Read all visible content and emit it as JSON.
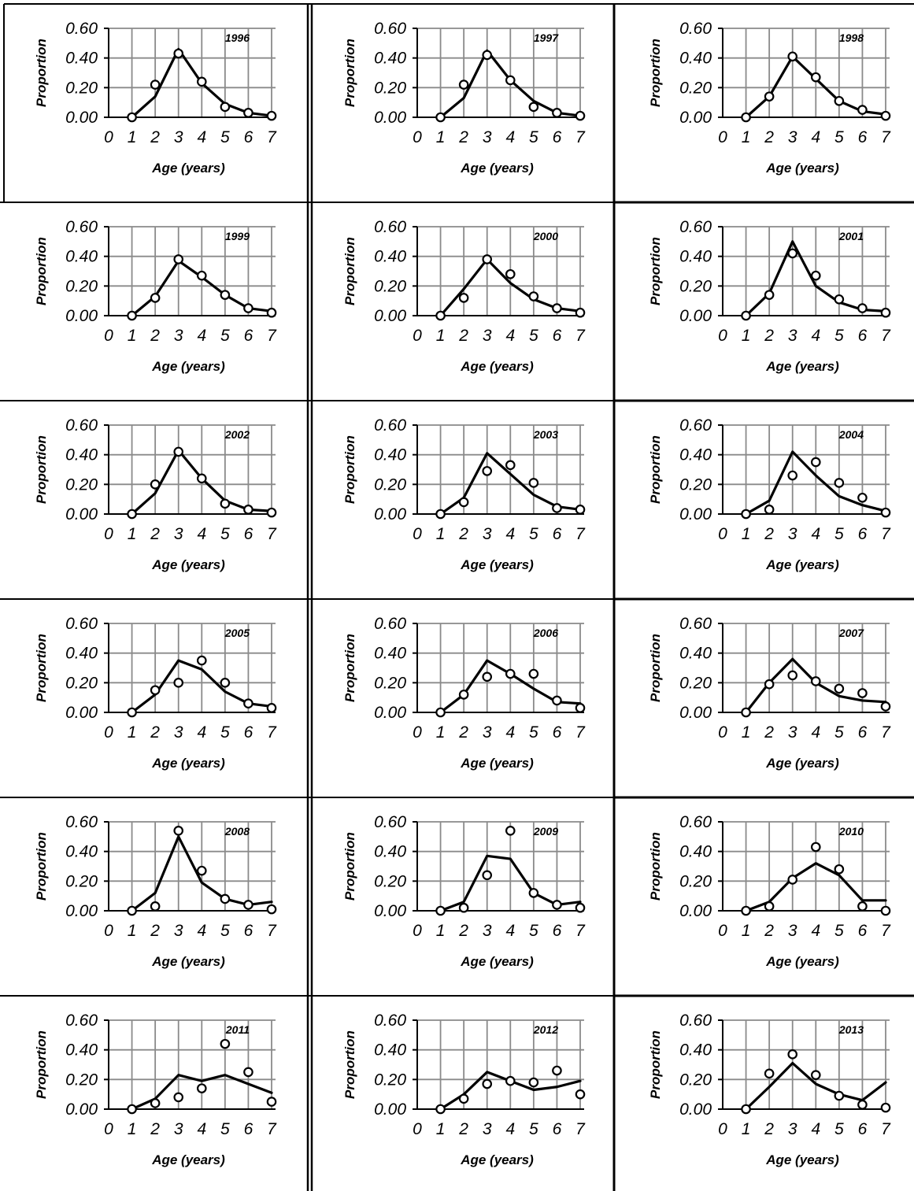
{
  "chart_data": [
    {
      "type": "line",
      "title": "1996",
      "xlabel": "Age (years)",
      "ylabel": "Proportion",
      "xlim": [
        0,
        7
      ],
      "ylim": [
        0,
        0.6
      ],
      "xticks": [
        "0",
        "1",
        "2",
        "3",
        "4",
        "5",
        "6",
        "7"
      ],
      "yticks": [
        "0.00",
        "0.20",
        "0.40",
        "0.60"
      ],
      "grid": true,
      "x": [
        1,
        2,
        3,
        4,
        5,
        6,
        7
      ],
      "series": [
        {
          "style": "line",
          "values": [
            0.0,
            0.14,
            0.46,
            0.23,
            0.09,
            0.03,
            0.01
          ]
        },
        {
          "style": "markers",
          "values": [
            0.0,
            0.22,
            0.43,
            0.24,
            0.07,
            0.03,
            0.01
          ]
        }
      ]
    },
    {
      "type": "line",
      "title": "1997",
      "xlabel": "Age (years)",
      "ylabel": "Proportion",
      "xlim": [
        0,
        7
      ],
      "ylim": [
        0,
        0.6
      ],
      "xticks": [
        "0",
        "1",
        "2",
        "3",
        "4",
        "5",
        "6",
        "7"
      ],
      "yticks": [
        "0.00",
        "0.20",
        "0.40",
        "0.60"
      ],
      "grid": true,
      "x": [
        1,
        2,
        3,
        4,
        5,
        6,
        7
      ],
      "series": [
        {
          "style": "line",
          "values": [
            0.0,
            0.13,
            0.45,
            0.25,
            0.11,
            0.03,
            0.01
          ]
        },
        {
          "style": "markers",
          "values": [
            0.0,
            0.22,
            0.42,
            0.25,
            0.07,
            0.03,
            0.01
          ]
        }
      ]
    },
    {
      "type": "line",
      "title": "1998",
      "xlabel": "Age (years)",
      "ylabel": "Proportion",
      "xlim": [
        0,
        7
      ],
      "ylim": [
        0,
        0.6
      ],
      "xticks": [
        "0",
        "1",
        "2",
        "3",
        "4",
        "5",
        "6",
        "7"
      ],
      "yticks": [
        "0.00",
        "0.20",
        "0.40",
        "0.60"
      ],
      "grid": true,
      "x": [
        1,
        2,
        3,
        4,
        5,
        6,
        7
      ],
      "series": [
        {
          "style": "line",
          "values": [
            0.0,
            0.14,
            0.41,
            0.26,
            0.11,
            0.04,
            0.02
          ]
        },
        {
          "style": "markers",
          "values": [
            0.0,
            0.14,
            0.41,
            0.27,
            0.11,
            0.05,
            0.01
          ]
        }
      ]
    },
    {
      "type": "line",
      "title": "1999",
      "xlabel": "Age (years)",
      "ylabel": "Proportion",
      "xlim": [
        0,
        7
      ],
      "ylim": [
        0,
        0.6
      ],
      "xticks": [
        "0",
        "1",
        "2",
        "3",
        "4",
        "5",
        "6",
        "7"
      ],
      "yticks": [
        "0.00",
        "0.20",
        "0.40",
        "0.60"
      ],
      "grid": true,
      "x": [
        1,
        2,
        3,
        4,
        5,
        6,
        7
      ],
      "series": [
        {
          "style": "line",
          "values": [
            0.0,
            0.13,
            0.37,
            0.26,
            0.14,
            0.05,
            0.03
          ]
        },
        {
          "style": "markers",
          "values": [
            0.0,
            0.12,
            0.38,
            0.27,
            0.14,
            0.05,
            0.02
          ]
        }
      ]
    },
    {
      "type": "line",
      "title": "2000",
      "xlabel": "Age (years)",
      "ylabel": "Proportion",
      "xlim": [
        0,
        7
      ],
      "ylim": [
        0,
        0.6
      ],
      "xticks": [
        "0",
        "1",
        "2",
        "3",
        "4",
        "5",
        "6",
        "7"
      ],
      "yticks": [
        "0.00",
        "0.20",
        "0.40",
        "0.60"
      ],
      "grid": true,
      "x": [
        1,
        2,
        3,
        4,
        5,
        6,
        7
      ],
      "series": [
        {
          "style": "line",
          "values": [
            0.0,
            0.18,
            0.38,
            0.22,
            0.11,
            0.05,
            0.03
          ]
        },
        {
          "style": "markers",
          "values": [
            0.0,
            0.12,
            0.38,
            0.28,
            0.13,
            0.05,
            0.02
          ]
        }
      ]
    },
    {
      "type": "line",
      "title": "2001",
      "xlabel": "Age (years)",
      "ylabel": "Proportion",
      "xlim": [
        0,
        7
      ],
      "ylim": [
        0,
        0.6
      ],
      "xticks": [
        "0",
        "1",
        "2",
        "3",
        "4",
        "5",
        "6",
        "7"
      ],
      "yticks": [
        "0.00",
        "0.20",
        "0.40",
        "0.60"
      ],
      "grid": true,
      "x": [
        1,
        2,
        3,
        4,
        5,
        6,
        7
      ],
      "series": [
        {
          "style": "line",
          "values": [
            0.0,
            0.15,
            0.5,
            0.2,
            0.09,
            0.04,
            0.03
          ]
        },
        {
          "style": "markers",
          "values": [
            0.0,
            0.14,
            0.42,
            0.27,
            0.11,
            0.05,
            0.02
          ]
        }
      ]
    },
    {
      "type": "line",
      "title": "2002",
      "xlabel": "Age (years)",
      "ylabel": "Proportion",
      "xlim": [
        0,
        7
      ],
      "ylim": [
        0,
        0.6
      ],
      "xticks": [
        "0",
        "1",
        "2",
        "3",
        "4",
        "5",
        "6",
        "7"
      ],
      "yticks": [
        "0.00",
        "0.20",
        "0.40",
        "0.60"
      ],
      "grid": true,
      "x": [
        1,
        2,
        3,
        4,
        5,
        6,
        7
      ],
      "series": [
        {
          "style": "line",
          "values": [
            0.0,
            0.14,
            0.43,
            0.24,
            0.09,
            0.03,
            0.02
          ]
        },
        {
          "style": "markers",
          "values": [
            0.0,
            0.2,
            0.42,
            0.24,
            0.07,
            0.03,
            0.01
          ]
        }
      ]
    },
    {
      "type": "line",
      "title": "2003",
      "xlabel": "Age (years)",
      "ylabel": "Proportion",
      "xlim": [
        0,
        7
      ],
      "ylim": [
        0,
        0.6
      ],
      "xticks": [
        "0",
        "1",
        "2",
        "3",
        "4",
        "5",
        "6",
        "7"
      ],
      "yticks": [
        "0.00",
        "0.20",
        "0.40",
        "0.60"
      ],
      "grid": true,
      "x": [
        1,
        2,
        3,
        4,
        5,
        6,
        7
      ],
      "series": [
        {
          "style": "line",
          "values": [
            0.0,
            0.11,
            0.41,
            0.27,
            0.13,
            0.05,
            0.03
          ]
        },
        {
          "style": "markers",
          "values": [
            0.0,
            0.08,
            0.29,
            0.33,
            0.21,
            0.04,
            0.03
          ]
        }
      ]
    },
    {
      "type": "line",
      "title": "2004",
      "xlabel": "Age (years)",
      "ylabel": "Proportion",
      "xlim": [
        0,
        7
      ],
      "ylim": [
        0,
        0.6
      ],
      "xticks": [
        "0",
        "1",
        "2",
        "3",
        "4",
        "5",
        "6",
        "7"
      ],
      "yticks": [
        "0.00",
        "0.20",
        "0.40",
        "0.60"
      ],
      "grid": true,
      "x": [
        1,
        2,
        3,
        4,
        5,
        6,
        7
      ],
      "series": [
        {
          "style": "line",
          "values": [
            0.0,
            0.09,
            0.42,
            0.26,
            0.12,
            0.06,
            0.02
          ]
        },
        {
          "style": "markers",
          "values": [
            0.0,
            0.03,
            0.26,
            0.35,
            0.21,
            0.11,
            0.01
          ]
        }
      ]
    },
    {
      "type": "line",
      "title": "2005",
      "xlabel": "Age (years)",
      "ylabel": "Proportion",
      "xlim": [
        0,
        7
      ],
      "ylim": [
        0,
        0.6
      ],
      "xticks": [
        "0",
        "1",
        "2",
        "3",
        "4",
        "5",
        "6",
        "7"
      ],
      "yticks": [
        "0.00",
        "0.20",
        "0.40",
        "0.60"
      ],
      "grid": true,
      "x": [
        1,
        2,
        3,
        4,
        5,
        6,
        7
      ],
      "series": [
        {
          "style": "line",
          "values": [
            0.0,
            0.12,
            0.35,
            0.29,
            0.14,
            0.06,
            0.04
          ]
        },
        {
          "style": "markers",
          "values": [
            0.0,
            0.15,
            0.2,
            0.35,
            0.2,
            0.06,
            0.03
          ]
        }
      ]
    },
    {
      "type": "line",
      "title": "2006",
      "xlabel": "Age (years)",
      "ylabel": "Proportion",
      "xlim": [
        0,
        7
      ],
      "ylim": [
        0,
        0.6
      ],
      "xticks": [
        "0",
        "1",
        "2",
        "3",
        "4",
        "5",
        "6",
        "7"
      ],
      "yticks": [
        "0.00",
        "0.20",
        "0.40",
        "0.60"
      ],
      "grid": true,
      "x": [
        1,
        2,
        3,
        4,
        5,
        6,
        7
      ],
      "series": [
        {
          "style": "line",
          "values": [
            0.0,
            0.12,
            0.35,
            0.26,
            0.16,
            0.07,
            0.06
          ]
        },
        {
          "style": "markers",
          "values": [
            0.0,
            0.12,
            0.24,
            0.26,
            0.26,
            0.08,
            0.03
          ]
        }
      ]
    },
    {
      "type": "line",
      "title": "2007",
      "xlabel": "Age (years)",
      "ylabel": "Proportion",
      "xlim": [
        0,
        7
      ],
      "ylim": [
        0,
        0.6
      ],
      "xticks": [
        "0",
        "1",
        "2",
        "3",
        "4",
        "5",
        "6",
        "7"
      ],
      "yticks": [
        "0.00",
        "0.20",
        "0.40",
        "0.60"
      ],
      "grid": true,
      "x": [
        1,
        2,
        3,
        4,
        5,
        6,
        7
      ],
      "series": [
        {
          "style": "line",
          "values": [
            0.0,
            0.2,
            0.36,
            0.2,
            0.11,
            0.08,
            0.07
          ]
        },
        {
          "style": "markers",
          "values": [
            0.0,
            0.19,
            0.25,
            0.21,
            0.16,
            0.13,
            0.04
          ]
        }
      ]
    },
    {
      "type": "line",
      "title": "2008",
      "xlabel": "Age (years)",
      "ylabel": "Proportion",
      "xlim": [
        0,
        7
      ],
      "ylim": [
        0,
        0.6
      ],
      "xticks": [
        "0",
        "1",
        "2",
        "3",
        "4",
        "5",
        "6",
        "7"
      ],
      "yticks": [
        "0.00",
        "0.20",
        "0.40",
        "0.60"
      ],
      "grid": true,
      "x": [
        1,
        2,
        3,
        4,
        5,
        6,
        7
      ],
      "series": [
        {
          "style": "line",
          "values": [
            0.0,
            0.12,
            0.5,
            0.19,
            0.08,
            0.04,
            0.06
          ]
        },
        {
          "style": "markers",
          "values": [
            0.0,
            0.03,
            0.54,
            0.27,
            0.08,
            0.04,
            0.01
          ]
        }
      ]
    },
    {
      "type": "line",
      "title": "2009",
      "xlabel": "Age (years)",
      "ylabel": "Proportion",
      "xlim": [
        0,
        7
      ],
      "ylim": [
        0,
        0.6
      ],
      "xticks": [
        "0",
        "1",
        "2",
        "3",
        "4",
        "5",
        "6",
        "7"
      ],
      "yticks": [
        "0.00",
        "0.20",
        "0.40",
        "0.60"
      ],
      "grid": true,
      "x": [
        1,
        2,
        3,
        4,
        5,
        6,
        7
      ],
      "series": [
        {
          "style": "line",
          "values": [
            0.0,
            0.06,
            0.37,
            0.35,
            0.12,
            0.04,
            0.06
          ]
        },
        {
          "style": "markers",
          "values": [
            0.0,
            0.02,
            0.24,
            0.54,
            0.12,
            0.04,
            0.02
          ]
        }
      ]
    },
    {
      "type": "line",
      "title": "2010",
      "xlabel": "Age (years)",
      "ylabel": "Proportion",
      "xlim": [
        0,
        7
      ],
      "ylim": [
        0,
        0.6
      ],
      "xticks": [
        "0",
        "1",
        "2",
        "3",
        "4",
        "5",
        "6",
        "7"
      ],
      "yticks": [
        "0.00",
        "0.20",
        "0.40",
        "0.60"
      ],
      "grid": true,
      "x": [
        1,
        2,
        3,
        4,
        5,
        6,
        7
      ],
      "series": [
        {
          "style": "line",
          "values": [
            0.0,
            0.06,
            0.22,
            0.32,
            0.24,
            0.07,
            0.07
          ]
        },
        {
          "style": "markers",
          "values": [
            0.0,
            0.03,
            0.21,
            0.43,
            0.28,
            0.03,
            0.0
          ]
        }
      ]
    },
    {
      "type": "line",
      "title": "2011",
      "xlabel": "Age (years)",
      "ylabel": "Proportion",
      "xlim": [
        0,
        7
      ],
      "ylim": [
        0,
        0.6
      ],
      "xticks": [
        "0",
        "1",
        "2",
        "3",
        "4",
        "5",
        "6",
        "7"
      ],
      "yticks": [
        "0.00",
        "0.20",
        "0.40",
        "0.60"
      ],
      "grid": true,
      "x": [
        1,
        2,
        3,
        4,
        5,
        6,
        7
      ],
      "series": [
        {
          "style": "line",
          "values": [
            0.0,
            0.07,
            0.23,
            0.19,
            0.23,
            0.17,
            0.11
          ]
        },
        {
          "style": "markers",
          "values": [
            0.0,
            0.04,
            0.08,
            0.14,
            0.44,
            0.25,
            0.05
          ]
        }
      ]
    },
    {
      "type": "line",
      "title": "2012",
      "xlabel": "Age (years)",
      "ylabel": "Proportion",
      "xlim": [
        0,
        7
      ],
      "ylim": [
        0,
        0.6
      ],
      "xticks": [
        "0",
        "1",
        "2",
        "3",
        "4",
        "5",
        "6",
        "7"
      ],
      "yticks": [
        "0.00",
        "0.20",
        "0.40",
        "0.60"
      ],
      "grid": true,
      "x": [
        1,
        2,
        3,
        4,
        5,
        6,
        7
      ],
      "series": [
        {
          "style": "line",
          "values": [
            0.0,
            0.1,
            0.25,
            0.19,
            0.13,
            0.15,
            0.19
          ]
        },
        {
          "style": "markers",
          "values": [
            0.0,
            0.07,
            0.17,
            0.19,
            0.18,
            0.26,
            0.1
          ]
        }
      ]
    },
    {
      "type": "line",
      "title": "2013",
      "xlabel": "Age (years)",
      "ylabel": "Proportion",
      "xlim": [
        0,
        7
      ],
      "ylim": [
        0,
        0.6
      ],
      "xticks": [
        "0",
        "1",
        "2",
        "3",
        "4",
        "5",
        "6",
        "7"
      ],
      "yticks": [
        "0.00",
        "0.20",
        "0.40",
        "0.60"
      ],
      "grid": true,
      "x": [
        1,
        2,
        3,
        4,
        5,
        6,
        7
      ],
      "series": [
        {
          "style": "line",
          "values": [
            0.0,
            0.15,
            0.31,
            0.17,
            0.1,
            0.06,
            0.18
          ]
        },
        {
          "style": "markers",
          "values": [
            0.0,
            0.24,
            0.37,
            0.23,
            0.09,
            0.03,
            0.01
          ]
        }
      ]
    }
  ]
}
